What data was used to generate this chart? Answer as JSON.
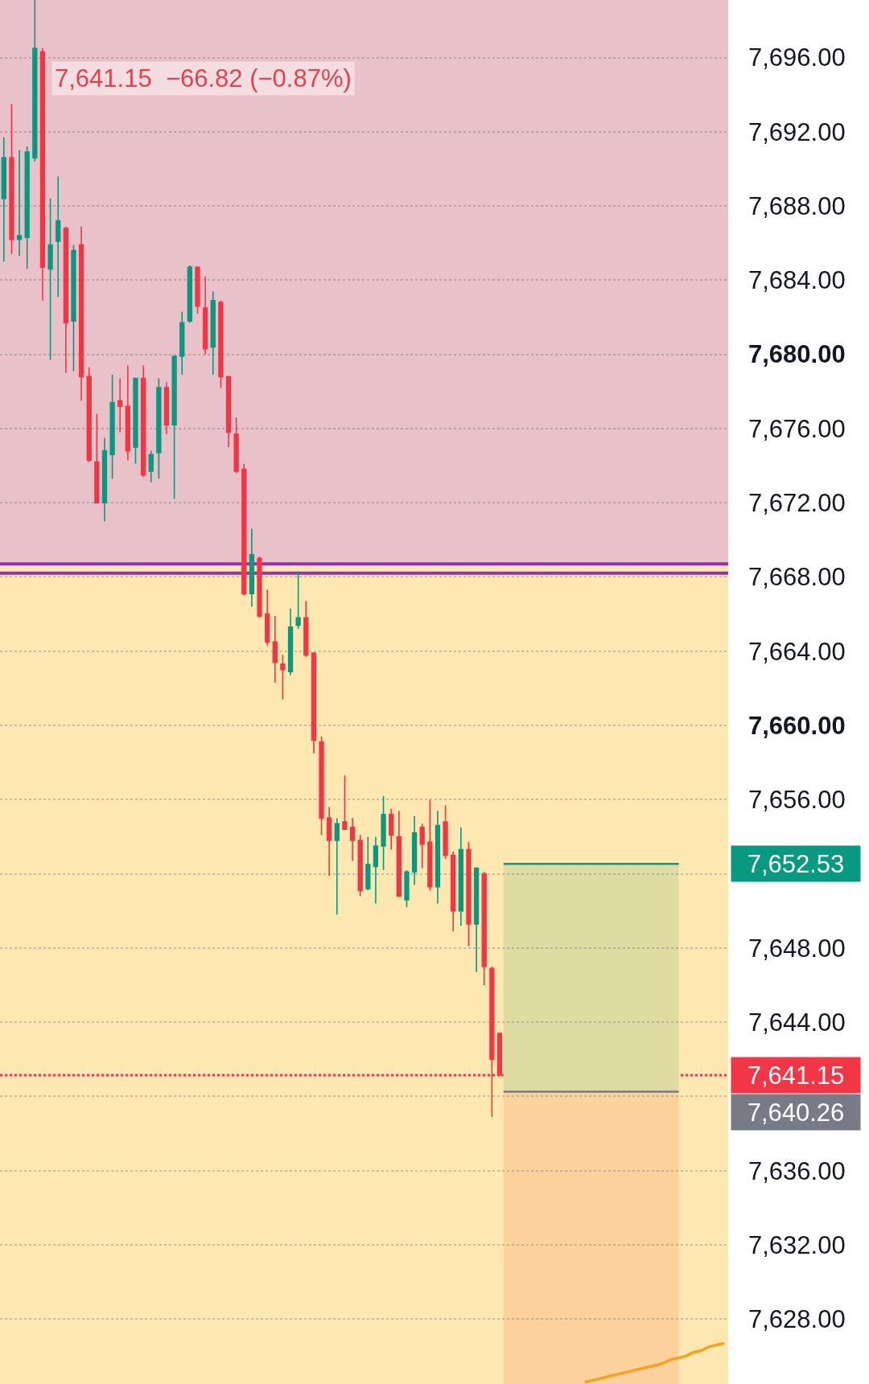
{
  "chart_data": {
    "type": "candlestick",
    "categories": [
      null,
      null,
      null,
      null,
      null,
      null,
      null,
      null,
      null,
      null,
      null,
      null,
      null,
      null,
      null,
      null,
      null,
      null,
      null,
      null,
      null,
      null,
      null,
      null,
      null,
      null,
      null,
      null,
      null,
      null,
      null,
      null,
      null,
      null,
      null,
      null,
      null,
      null,
      null,
      null,
      null,
      null,
      null,
      null,
      null,
      null,
      null,
      null,
      null,
      null,
      null,
      null,
      null,
      null,
      null,
      null,
      null,
      null,
      null,
      null,
      null,
      null,
      null,
      null,
      null,
      null,
      null,
      null,
      null,
      null,
      null,
      null,
      null,
      null,
      null,
      null,
      null,
      null,
      null,
      null,
      null,
      null,
      null,
      null,
      null,
      null,
      null,
      null,
      null,
      null,
      null,
      null,
      null,
      null
    ],
    "ohlc": [
      [
        7688.4,
        7691.7,
        7685.0,
        7690.6
      ],
      [
        7690.6,
        7693.5,
        7685.4,
        7686.2
      ],
      [
        7686.2,
        7691.0,
        7685.3,
        7686.4
      ],
      [
        7686.3,
        7691.2,
        7684.6,
        7690.9
      ],
      [
        7690.6,
        7699.1,
        7690.4,
        7696.5
      ],
      [
        7696.3,
        7696.5,
        7682.9,
        7684.7
      ],
      [
        7684.6,
        7688.4,
        7679.7,
        7685.9
      ],
      [
        7686.1,
        7689.6,
        7683.1,
        7687.2
      ],
      [
        7686.8,
        7686.9,
        7679.0,
        7681.7
      ],
      [
        7681.8,
        7685.9,
        7679.1,
        7685.6
      ],
      [
        7685.9,
        7686.9,
        7677.5,
        7678.8
      ],
      [
        7678.8,
        7679.3,
        7674.2,
        7674.3
      ],
      [
        7674.2,
        7676.8,
        7672.0,
        7672.0
      ],
      [
        7672.0,
        7675.5,
        7671.0,
        7674.8
      ],
      [
        7674.6,
        7678.9,
        7673.3,
        7677.4
      ],
      [
        7677.5,
        7678.7,
        7675.8,
        7677.2
      ],
      [
        7677.2,
        7679.4,
        7674.3,
        7674.8
      ],
      [
        7675.0,
        7678.7,
        7674.1,
        7678.7
      ],
      [
        7678.7,
        7679.4,
        7673.4,
        7673.5
      ],
      [
        7673.7,
        7674.8,
        7673.1,
        7674.6
      ],
      [
        7674.7,
        7678.7,
        7673.3,
        7678.2
      ],
      [
        7678.2,
        7678.5,
        7675.7,
        7676.2
      ],
      [
        7676.2,
        7679.9,
        7672.2,
        7679.9
      ],
      [
        7679.9,
        7682.3,
        7678.9,
        7681.7
      ],
      [
        7681.8,
        7684.8,
        7681.7,
        7684.7
      ],
      [
        7684.7,
        7684.7,
        7682.2,
        7682.6
      ],
      [
        7682.5,
        7684.2,
        7680.0,
        7680.3
      ],
      [
        7680.4,
        7683.4,
        7678.9,
        7682.9
      ],
      [
        7682.8,
        7682.9,
        7678.2,
        7678.8
      ],
      [
        7678.8,
        7678.8,
        7675.0,
        7675.8
      ],
      [
        7675.7,
        7676.6,
        7673.6,
        7673.7
      ],
      [
        7673.8,
        7674.1,
        7667.0,
        7667.1
      ],
      [
        7667.1,
        7670.6,
        7666.4,
        7669.2
      ],
      [
        7669.0,
        7669.1,
        7665.8,
        7665.9
      ],
      [
        7666.0,
        7667.3,
        7664.3,
        7664.5
      ],
      [
        7664.5,
        7665.9,
        7662.3,
        7663.4
      ],
      [
        7663.3,
        7663.8,
        7661.4,
        7663.0
      ],
      [
        7662.9,
        7666.3,
        7662.7,
        7665.3
      ],
      [
        7665.4,
        7668.3,
        7665.2,
        7665.8
      ],
      [
        7665.8,
        7666.7,
        7663.7,
        7663.8
      ],
      [
        7663.9,
        7663.9,
        7658.5,
        7659.2
      ],
      [
        7659.1,
        7659.4,
        7654.1,
        7655.0
      ],
      [
        7655.0,
        7655.6,
        7651.9,
        7653.8
      ],
      [
        7653.8,
        7655.0,
        7649.8,
        7654.7
      ],
      [
        7654.8,
        7657.3,
        7654.4,
        7654.4
      ],
      [
        7654.5,
        7655.0,
        7652.7,
        7653.8
      ],
      [
        7653.8,
        7654.1,
        7650.8,
        7651.1
      ],
      [
        7651.2,
        7654.0,
        7651.1,
        7652.5
      ],
      [
        7652.4,
        7654.0,
        7650.4,
        7653.5
      ],
      [
        7653.5,
        7656.2,
        7652.2,
        7655.2
      ],
      [
        7655.2,
        7655.5,
        7653.3,
        7654.1
      ],
      [
        7654.0,
        7655.4,
        7650.8,
        7650.8
      ],
      [
        7650.6,
        7652.2,
        7650.2,
        7652.1
      ],
      [
        7652.1,
        7655.1,
        7651.4,
        7654.2
      ],
      [
        7654.5,
        7654.7,
        7652.3,
        7653.6
      ],
      [
        7653.7,
        7656.0,
        7651.1,
        7651.3
      ],
      [
        7651.3,
        7655.4,
        7650.4,
        7654.6
      ],
      [
        7654.8,
        7655.7,
        7652.8,
        7653.0
      ],
      [
        7653.0,
        7653.2,
        7648.9,
        7650.0
      ],
      [
        7650.0,
        7654.5,
        7649.2,
        7653.3
      ],
      [
        7653.3,
        7653.7,
        7648.1,
        7649.3
      ],
      [
        7649.3,
        7652.3,
        7646.7,
        7652.3
      ],
      [
        7652.0,
        7652.1,
        7646.0,
        7647.0
      ],
      [
        7646.9,
        7647.0,
        7638.9,
        7642.0
      ],
      [
        7643.4,
        7643.4,
        7641.15,
        7641.15
      ],
      null,
      null,
      null,
      null,
      null,
      null,
      null,
      null,
      null,
      null,
      null,
      null,
      null,
      null,
      null,
      null,
      null,
      null,
      null,
      null,
      null,
      null,
      null,
      null,
      null,
      null,
      null,
      null,
      null
    ],
    "colors": [
      "#089981",
      "#f23645",
      "#089981",
      "#089981",
      "#089981",
      "#f23645",
      "#089981",
      "#089981",
      "#f23645",
      "#089981",
      "#f23645",
      "#f23645",
      "#f23645",
      "#089981",
      "#089981",
      "#f23645",
      "#f23645",
      "#089981",
      "#f23645",
      "#089981",
      "#089981",
      "#f23645",
      "#089981",
      "#089981",
      "#089981",
      "#f23645",
      "#f23645",
      "#089981",
      "#f23645",
      "#f23645",
      "#f23645",
      "#f23645",
      "#089981",
      "#f23645",
      "#f23645",
      "#f23645",
      "#f23645",
      "#089981",
      "#089981",
      "#f23645",
      "#f23645",
      "#f23645",
      "#f23645",
      "#089981",
      "#f23645",
      "#f23645",
      "#f23645",
      "#089981",
      "#089981",
      "#089981",
      "#f23645",
      "#f23645",
      "#089981",
      "#089981",
      "#f23645",
      "#f23645",
      "#089981",
      "#f23645",
      "#f23645",
      "#089981",
      "#f23645",
      "#089981",
      "#f23645",
      "#f23645",
      "#f23645",
      null,
      null,
      null,
      null,
      null,
      null,
      null,
      null,
      null,
      null,
      null,
      null,
      null,
      null,
      null,
      null,
      null,
      null,
      null,
      null,
      null,
      null,
      null,
      null,
      null,
      null,
      null,
      null,
      null
    ],
    "series": [
      {
        "type": "line",
        "color": "#f6a21c",
        "values": [
          null,
          null,
          null,
          null,
          null,
          null,
          null,
          null,
          null,
          null,
          null,
          null,
          null,
          null,
          null,
          null,
          null,
          null,
          null,
          null,
          null,
          null,
          null,
          null,
          null,
          null,
          null,
          null,
          null,
          null,
          null,
          null,
          null,
          null,
          null,
          null,
          null,
          null,
          null,
          null,
          null,
          null,
          null,
          null,
          null,
          null,
          null,
          null,
          null,
          null,
          null,
          null,
          null,
          null,
          null,
          null,
          null,
          null,
          null,
          null,
          null,
          null,
          null,
          null,
          null,
          null,
          null,
          null,
          null,
          null,
          null,
          null,
          null,
          null,
          null,
          7624.6,
          7624.7,
          7624.8,
          7624.9,
          7625.0,
          7625.1,
          7625.2,
          7625.3,
          7625.4,
          7625.5,
          7625.6,
          7625.8,
          7625.9,
          7626.0,
          7626.2,
          7626.3,
          7626.5,
          7626.6,
          7626.7
        ]
      }
    ],
    "ylim": [
      7624.5,
      7699.1
    ],
    "yticks": [
      {
        "value": 7628,
        "label": "7,628.00"
      },
      {
        "value": 7632,
        "label": "7,632.00"
      },
      {
        "value": 7636,
        "label": "7,636.00"
      },
      {
        "value": 7640,
        "label": null
      },
      {
        "value": 7644,
        "label": "7,644.00"
      },
      {
        "value": 7648,
        "label": "7,648.00"
      },
      {
        "value": 7652,
        "label": null
      },
      {
        "value": 7656,
        "label": "7,656.00"
      },
      {
        "value": 7660,
        "label": "7,660.00"
      },
      {
        "value": 7664,
        "label": "7,664.00"
      },
      {
        "value": 7668,
        "label": "7,668.00"
      },
      {
        "value": 7672,
        "label": "7,672.00"
      },
      {
        "value": 7676,
        "label": "7,676.00"
      },
      {
        "value": 7680,
        "label": "7,680.00"
      },
      {
        "value": 7684,
        "label": "7,684.00"
      },
      {
        "value": 7688,
        "label": "7,688.00"
      },
      {
        "value": 7692,
        "label": "7,692.00"
      },
      {
        "value": 7696,
        "label": "7,696.00"
      }
    ],
    "grid": "y",
    "tick_labels": "y",
    "bands": [
      {
        "axis": "y",
        "from": 7668.2,
        "to": 7699.1,
        "color": "#e9c1c8"
      },
      {
        "axis": "y",
        "from": 7624.5,
        "to": 7668.7,
        "color": "#fde8b1"
      },
      {
        "axis": "y",
        "from": 7640.26,
        "to": 7652.53,
        "color": "#dedca2"
      },
      {
        "axis": "y",
        "from": 7624.5,
        "to": 7640.26,
        "color": "#fdd19c"
      }
    ],
    "ref_lines": [
      {
        "axis": "y",
        "value": 7668.7,
        "color": "#9530b0",
        "line_style": "solid"
      },
      {
        "axis": "y",
        "value": 7668.2,
        "color": "#9530b0",
        "line_style": "solid"
      },
      {
        "axis": "y",
        "value": 7652.53,
        "label": "7,652.53",
        "color": "#089981",
        "line_style": "solid"
      },
      {
        "axis": "y",
        "value": 7641.15,
        "label": "7,641.15",
        "color": "#f23645",
        "line_style": "dotted"
      },
      {
        "axis": "y",
        "value": 7640.26,
        "label": "7,640.26",
        "color": "#787b86",
        "line_style": "solid"
      }
    ],
    "annotations": [
      "7,641.15  −66.82 (−0.87%)"
    ]
  }
}
